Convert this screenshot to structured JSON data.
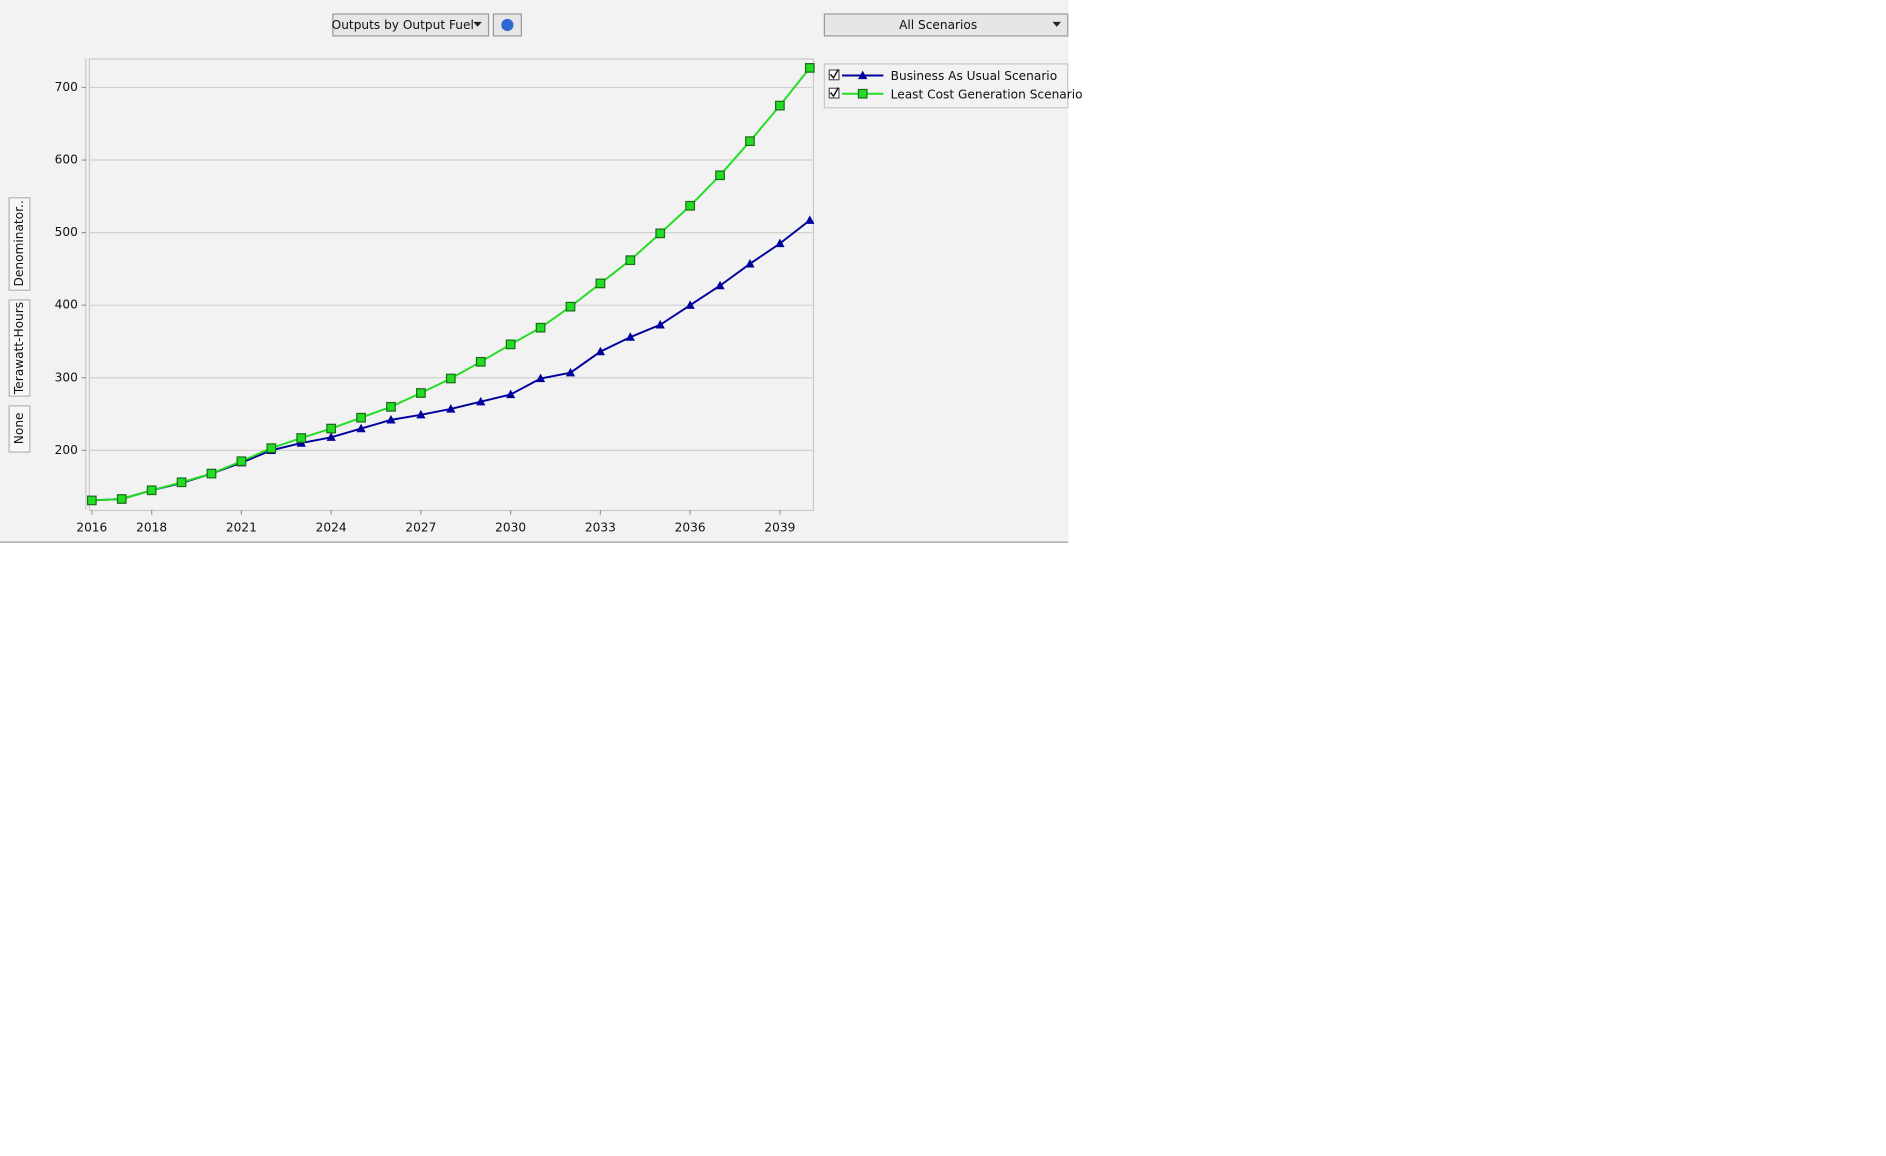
{
  "toolbar": {
    "fuel_select": "Outputs by Output Fuel",
    "scenario_select": "All Scenarios"
  },
  "side_tabs": [
    "Denominator..",
    "Terawatt-Hours",
    "None"
  ],
  "chart_data": {
    "type": "line",
    "x": [
      2016,
      2017,
      2018,
      2019,
      2020,
      2021,
      2022,
      2023,
      2024,
      2025,
      2026,
      2027,
      2028,
      2029,
      2030,
      2031,
      2032,
      2033,
      2034,
      2035,
      2036,
      2037,
      2038,
      2039,
      2040
    ],
    "xlim": [
      2015.9,
      2040.1
    ],
    "xticks": [
      2016,
      2018,
      2021,
      2024,
      2027,
      2030,
      2033,
      2036,
      2039
    ],
    "ylim": [
      118,
      740
    ],
    "yticks": [
      200,
      300,
      400,
      500,
      600,
      700
    ],
    "grid": true,
    "legend": "right",
    "series": [
      {
        "name": "Business As Usual Scenario",
        "color": "#00009c",
        "marker": "triangle",
        "values": [
          131,
          133,
          145,
          155,
          168,
          183,
          200,
          210,
          218,
          230,
          242,
          249,
          257,
          267,
          277,
          299,
          307,
          336,
          356,
          373,
          400,
          427,
          457,
          485,
          517
        ]
      },
      {
        "name": "Least Cost Generation Scenario",
        "color": "#22dd22",
        "marker": "square",
        "values": [
          131,
          133,
          145,
          156,
          168,
          185,
          203,
          217,
          230,
          245,
          260,
          279,
          299,
          322,
          346,
          369,
          398,
          430,
          462,
          499,
          537,
          579,
          626,
          675,
          727
        ]
      }
    ]
  }
}
